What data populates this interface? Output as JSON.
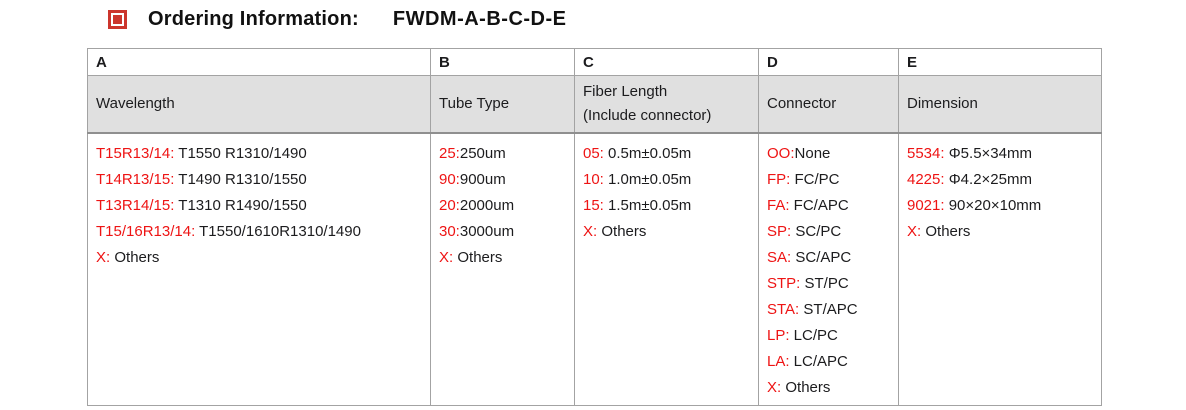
{
  "colors": {
    "red_text": "#ee1414",
    "icon_red": "#cc352c",
    "header_bg": "#e0e0e0",
    "border": "#a3a3a3",
    "border_strong": "#8f8f8f",
    "text": "#1c1c1e",
    "title_text": "#111111"
  },
  "title": {
    "icon": "red-square-bullet",
    "label": "Ordering Information:",
    "code": "FWDM-A-B-C-D-E"
  },
  "table": {
    "columns": [
      {
        "letter": "A",
        "header": "Wavelength",
        "items": [
          {
            "code": "T15R13/14:",
            "desc": " T1550 R1310/1490"
          },
          {
            "code": "T14R13/15:",
            "desc": " T1490 R1310/1550"
          },
          {
            "code": "T13R14/15:",
            "desc": " T1310 R1490/1550"
          },
          {
            "code": "T15/16R13/14:",
            "desc": " T1550/1610R1310/1490"
          },
          {
            "code": "X:",
            "desc": " Others"
          }
        ]
      },
      {
        "letter": "B",
        "header": "Tube Type",
        "items": [
          {
            "code": "25:",
            "desc": "250um"
          },
          {
            "code": "90:",
            "desc": "900um"
          },
          {
            "code": "20:",
            "desc": "2000um"
          },
          {
            "code": "30:",
            "desc": "3000um"
          },
          {
            "code": "X:",
            "desc": " Others"
          }
        ]
      },
      {
        "letter": "C",
        "header": "Fiber Length\n(Include connector)",
        "items": [
          {
            "code": "05:",
            "desc": " 0.5m±0.05m"
          },
          {
            "code": "10:",
            "desc": " 1.0m±0.05m"
          },
          {
            "code": "15:",
            "desc": " 1.5m±0.05m"
          },
          {
            "code": "X:",
            "desc": " Others"
          }
        ]
      },
      {
        "letter": "D",
        "header": "Connector",
        "items": [
          {
            "code": "OO:",
            "desc": "None"
          },
          {
            "code": "FP:",
            "desc": " FC/PC"
          },
          {
            "code": "FA:",
            "desc": " FC/APC"
          },
          {
            "code": "SP:",
            "desc": " SC/PC"
          },
          {
            "code": "SA:",
            "desc": " SC/APC"
          },
          {
            "code": "STP:",
            "desc": " ST/PC"
          },
          {
            "code": "STA:",
            "desc": " ST/APC"
          },
          {
            "code": "LP:",
            "desc": " LC/PC"
          },
          {
            "code": "LA:",
            "desc": " LC/APC"
          },
          {
            "code": "X:",
            "desc": " Others"
          }
        ]
      },
      {
        "letter": "E",
        "header": "Dimension",
        "items": [
          {
            "code": "5534:",
            "desc": " Φ5.5×34mm"
          },
          {
            "code": "4225:",
            "desc": " Φ4.2×25mm"
          },
          {
            "code": "9021:",
            "desc": " 90×20×10mm"
          },
          {
            "code": "X:",
            "desc": " Others"
          }
        ]
      }
    ]
  }
}
